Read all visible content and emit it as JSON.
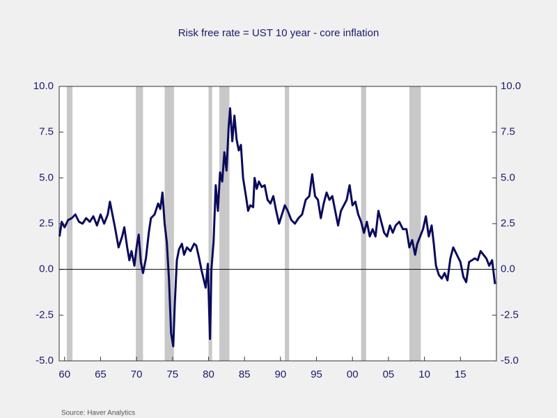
{
  "chart_data": {
    "type": "line",
    "title": "Risk free rate = UST 10 year - core inflation",
    "source": "Source:  Haver Analytics",
    "color": "#0a0a5c",
    "shade_color": "#c8c8c8",
    "x": [
      1959.3,
      1959.6,
      1960,
      1960.5,
      1961,
      1961.5,
      1962,
      1962.5,
      1963,
      1963.5,
      1964,
      1964.5,
      1965,
      1965.5,
      1966,
      1966.3,
      1966.7,
      1967,
      1967.5,
      1968,
      1968.3,
      1968.7,
      1969,
      1969.3,
      1969.7,
      1970,
      1970.3,
      1970.6,
      1970.9,
      1971.3,
      1971.7,
      1972,
      1972.5,
      1973,
      1973.3,
      1973.6,
      1973.9,
      1974.2,
      1974.5,
      1974.8,
      1975.1,
      1975.3,
      1975.6,
      1975.9,
      1976.3,
      1976.6,
      1977,
      1977.5,
      1978,
      1978.3,
      1978.7,
      1979,
      1979.3,
      1979.6,
      1979.9,
      1980.2,
      1980.4,
      1980.7,
      1981,
      1981.3,
      1981.6,
      1981.9,
      1982.2,
      1982.5,
      1982.8,
      1983,
      1983.3,
      1983.6,
      1983.9,
      1984.2,
      1984.5,
      1984.8,
      1985.2,
      1985.5,
      1985.8,
      1986.2,
      1986.4,
      1986.7,
      1987,
      1987.4,
      1987.8,
      1988.2,
      1988.6,
      1989,
      1989.4,
      1989.8,
      1990.2,
      1990.6,
      1991,
      1991.5,
      1992,
      1992.5,
      1993,
      1993.5,
      1994,
      1994.4,
      1994.8,
      1995.2,
      1995.6,
      1996,
      1996.4,
      1996.8,
      1997.2,
      1997.6,
      1998,
      1998.4,
      1998.8,
      1999.2,
      1999.6,
      2000,
      2000.4,
      2000.8,
      2001.2,
      2001.6,
      2002,
      2002.4,
      2002.8,
      2003.2,
      2003.6,
      2004,
      2004.4,
      2004.8,
      2005.2,
      2005.6,
      2006,
      2006.5,
      2007,
      2007.5,
      2007.9,
      2008.3,
      2008.7,
      2009,
      2009.4,
      2009.8,
      2010.2,
      2010.6,
      2011,
      2011.3,
      2011.6,
      2012,
      2012.4,
      2012.8,
      2013.2,
      2013.6,
      2014,
      2014.5,
      2015,
      2015.4,
      2015.8,
      2016.2,
      2016.6,
      2017,
      2017.4,
      2017.8,
      2018.2,
      2018.6,
      2019,
      2019.4,
      2019.8
    ],
    "values": [
      1.8,
      2.6,
      2.3,
      2.7,
      2.8,
      3.0,
      2.6,
      2.5,
      2.8,
      2.6,
      2.9,
      2.4,
      3.0,
      2.5,
      3.0,
      3.7,
      2.9,
      2.3,
      1.2,
      1.8,
      2.3,
      1.2,
      0.5,
      1.0,
      0.2,
      1.2,
      1.9,
      0.4,
      -0.2,
      0.6,
      2.0,
      2.8,
      3.0,
      3.6,
      3.3,
      4.2,
      2.5,
      1.5,
      -0.5,
      -3.5,
      -4.2,
      -2.0,
      0.5,
      1.1,
      1.4,
      0.8,
      1.2,
      1.0,
      1.4,
      1.3,
      0.6,
      0.0,
      -0.5,
      -1.0,
      0.3,
      -3.8,
      0.0,
      1.5,
      4.6,
      3.2,
      5.3,
      4.8,
      6.4,
      5.4,
      7.8,
      8.8,
      7.0,
      8.4,
      7.1,
      6.5,
      6.8,
      5.0,
      4.0,
      3.2,
      3.5,
      3.4,
      5.0,
      4.4,
      4.8,
      4.5,
      4.6,
      3.8,
      3.6,
      4.0,
      3.2,
      2.5,
      3.0,
      3.5,
      3.2,
      2.7,
      2.5,
      2.8,
      3.0,
      3.8,
      4.0,
      5.2,
      4.0,
      3.8,
      2.8,
      3.6,
      4.2,
      3.8,
      4.0,
      3.2,
      2.4,
      3.2,
      3.5,
      3.8,
      4.6,
      3.5,
      3.7,
      3.0,
      2.6,
      2.0,
      2.6,
      1.8,
      2.2,
      1.8,
      3.2,
      2.6,
      2.0,
      1.8,
      2.4,
      2.0,
      2.4,
      2.6,
      2.2,
      2.2,
      1.2,
      1.6,
      0.8,
      1.4,
      1.8,
      2.2,
      2.9,
      1.8,
      2.4,
      1.4,
      0.2,
      -0.3,
      -0.5,
      -0.2,
      -0.6,
      0.6,
      1.2,
      0.8,
      0.4,
      -0.4,
      -0.7,
      0.4,
      0.5,
      0.6,
      0.5,
      1.0,
      0.8,
      0.6,
      0.2,
      0.5,
      -0.8
    ],
    "recessions": [
      [
        1960.3,
        1961.1
      ],
      [
        1969.9,
        1970.9
      ],
      [
        1973.9,
        1975.2
      ],
      [
        1980.0,
        1980.5
      ],
      [
        1981.5,
        1982.9
      ],
      [
        1990.6,
        1991.2
      ],
      [
        2001.2,
        2001.9
      ],
      [
        2007.9,
        2009.5
      ]
    ],
    "xlim": [
      1959.25,
      2020.0
    ],
    "xticks": [
      {
        "value": 1960,
        "label": "60"
      },
      {
        "value": 1965,
        "label": "65"
      },
      {
        "value": 1970,
        "label": "70"
      },
      {
        "value": 1975,
        "label": "75"
      },
      {
        "value": 1980,
        "label": "80"
      },
      {
        "value": 1985,
        "label": "85"
      },
      {
        "value": 1990,
        "label": "90"
      },
      {
        "value": 1995,
        "label": "95"
      },
      {
        "value": 2000,
        "label": "00"
      },
      {
        "value": 2005,
        "label": "05"
      },
      {
        "value": 2010,
        "label": "10"
      },
      {
        "value": 2015,
        "label": "15"
      }
    ],
    "ylim": [
      -5,
      10
    ],
    "yticks": [
      {
        "value": -5,
        "label": "-5.0"
      },
      -2.5,
      {
        "value": 0,
        "label": "0.0"
      },
      2.5,
      {
        "value": 5,
        "label": "5.0"
      },
      7.5,
      {
        "value": 10,
        "label": "10.0"
      }
    ],
    "zero_line": true
  }
}
